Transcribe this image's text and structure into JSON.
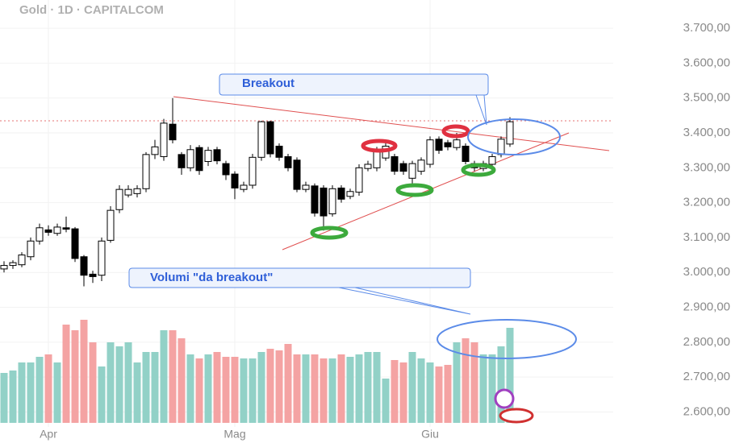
{
  "chart_data": {
    "type": "candlestick",
    "title": "Gold · 1D · CAPITALCOM",
    "annotations": [
      "Breakout",
      "Volumi \"da breakout\""
    ],
    "categories": [
      null,
      null,
      null,
      null,
      null,
      "Apr",
      null,
      null,
      null,
      null,
      null,
      null,
      null,
      null,
      null,
      null,
      null,
      null,
      null,
      null,
      null,
      null,
      null,
      null,
      null,
      null,
      "Mag",
      null,
      null,
      null,
      null,
      null,
      null,
      null,
      null,
      null,
      null,
      null,
      null,
      null,
      null,
      null,
      null,
      null,
      null,
      null,
      null,
      null,
      "Giu",
      null,
      null,
      null,
      null,
      null,
      null,
      null,
      null,
      null
    ],
    "open": [
      3010,
      3020,
      3022,
      3045,
      3090,
      3122,
      3112,
      3128,
      3125,
      3045,
      2995,
      2992,
      3092,
      3180,
      3222,
      3226,
      3240,
      3338,
      3332,
      3425,
      3338,
      3300,
      3358,
      3318,
      3352,
      3312,
      3282,
      3238,
      3250,
      3330,
      3432,
      3362,
      3332,
      3322,
      3238,
      3248,
      3242,
      3168,
      3242,
      3218,
      3230,
      3298,
      3300,
      3328,
      3332,
      3312,
      3270,
      3290,
      3310,
      3382,
      3372,
      3358,
      3362,
      3312,
      3298,
      3310,
      3338,
      3368
    ],
    "high": [
      3032,
      3035,
      3058,
      3100,
      3140,
      3135,
      3140,
      3160,
      3130,
      3050,
      3005,
      3100,
      3190,
      3250,
      3250,
      3250,
      3345,
      3380,
      3440,
      3500,
      3345,
      3365,
      3365,
      3360,
      3360,
      3320,
      3290,
      3260,
      3340,
      3435,
      3435,
      3370,
      3340,
      3330,
      3260,
      3255,
      3250,
      3250,
      3250,
      3240,
      3310,
      3320,
      3360,
      3380,
      3340,
      3320,
      3320,
      3330,
      3390,
      3390,
      3380,
      3400,
      3370,
      3320,
      3320,
      3340,
      3390,
      3445
    ],
    "low": [
      3000,
      3010,
      3015,
      3035,
      3080,
      3105,
      3105,
      3115,
      3030,
      2960,
      2970,
      2975,
      3085,
      3170,
      3215,
      3215,
      3230,
      3325,
      3320,
      3370,
      3280,
      3290,
      3280,
      3305,
      3310,
      3265,
      3210,
      3230,
      3240,
      3320,
      3330,
      3320,
      3290,
      3230,
      3230,
      3160,
      3120,
      3160,
      3200,
      3210,
      3220,
      3290,
      3290,
      3320,
      3280,
      3280,
      3245,
      3280,
      3300,
      3340,
      3350,
      3350,
      3310,
      3290,
      3290,
      3300,
      3330,
      3360
    ],
    "close": [
      3020,
      3028,
      3050,
      3090,
      3128,
      3115,
      3130,
      3124,
      3040,
      2992,
      2988,
      3090,
      3178,
      3238,
      3238,
      3240,
      3338,
      3360,
      3428,
      3380,
      3300,
      3352,
      3292,
      3350,
      3320,
      3280,
      3242,
      3250,
      3330,
      3432,
      3340,
      3330,
      3300,
      3238,
      3250,
      3170,
      3162,
      3240,
      3210,
      3232,
      3300,
      3310,
      3352,
      3362,
      3290,
      3290,
      3312,
      3322,
      3380,
      3350,
      3360,
      3380,
      3318,
      3300,
      3312,
      3332,
      3382,
      3432
    ],
    "volume": [
      62,
      65,
      75,
      75,
      82,
      85,
      75,
      122,
      115,
      128,
      100,
      70,
      100,
      95,
      100,
      75,
      88,
      88,
      115,
      115,
      105,
      85,
      80,
      85,
      88,
      82,
      82,
      80,
      80,
      88,
      92,
      90,
      98,
      85,
      85,
      85,
      80,
      80,
      85,
      82,
      85,
      88,
      88,
      55,
      78,
      75,
      88,
      80,
      75,
      70,
      72,
      100,
      105,
      100,
      85,
      85,
      95,
      118
    ],
    "vlim": [
      0,
      150
    ],
    "up_color": "#ffffff",
    "down_color": "#000000",
    "volume_up_color": "#92d1c7",
    "volume_down_color": "#f4a3a3",
    "ylim": [
      2511,
      3781
    ],
    "yticks": [
      {
        "value": 2600,
        "label": "2.600,00"
      },
      {
        "value": 2700,
        "label": "2.700,00"
      },
      {
        "value": 2800,
        "label": "2.800,00"
      },
      {
        "value": 2900,
        "label": "2.900,00"
      },
      {
        "value": 3000,
        "label": "3.000,00"
      },
      {
        "value": 3100,
        "label": "3.100,00"
      },
      {
        "value": 3200,
        "label": "3.200,00"
      },
      {
        "value": 3300,
        "label": "3.300,00"
      },
      {
        "value": 3400,
        "label": "3.400,00"
      },
      {
        "value": 3500,
        "label": "3.500,00"
      },
      {
        "value": 3600,
        "label": "3.600,00"
      },
      {
        "value": 3700,
        "label": "3.700,00"
      }
    ],
    "grid": true
  }
}
